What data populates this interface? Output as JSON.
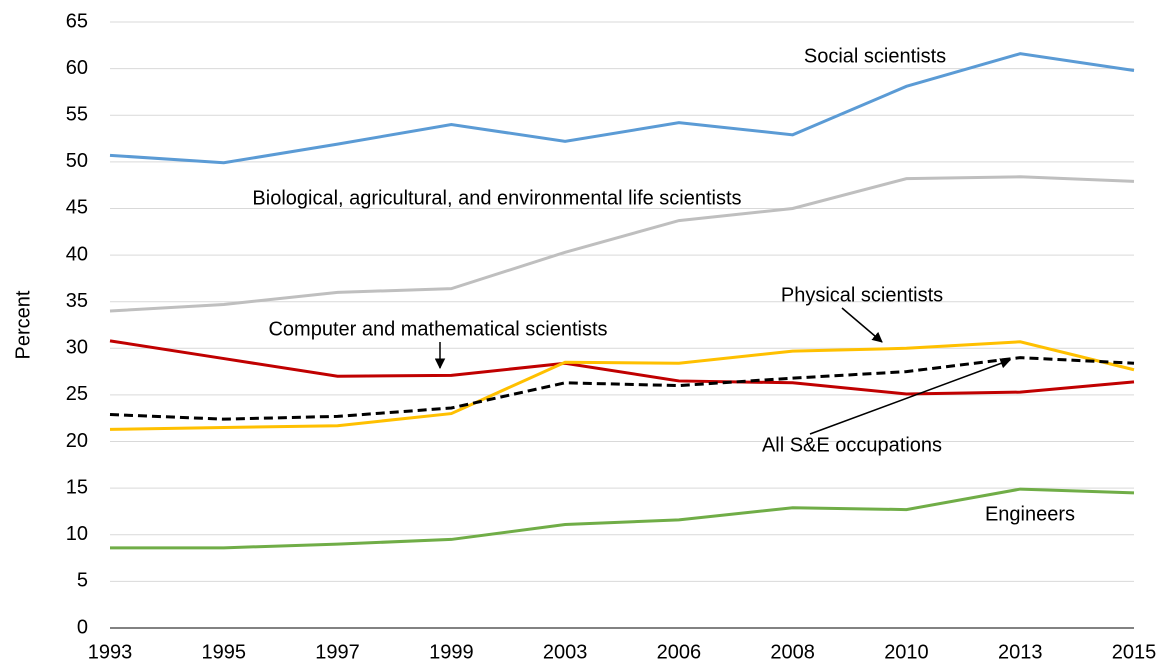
{
  "chart_data": {
    "type": "line",
    "y_label": "Percent",
    "categories": [
      "1993",
      "1995",
      "1997",
      "1999",
      "2003",
      "2006",
      "2008",
      "2010",
      "2013",
      "2015"
    ],
    "series": [
      {
        "name": "Social scientists",
        "color": "#5b9bd5",
        "values": [
          50.7,
          49.9,
          51.9,
          54.0,
          52.2,
          54.2,
          52.9,
          58.1,
          61.6,
          59.8
        ]
      },
      {
        "name": "Biological, agricultural, and environmental life scientists",
        "color": "#bfbfbf",
        "values": [
          34.0,
          34.7,
          36.0,
          36.4,
          40.3,
          43.7,
          45.0,
          48.2,
          48.4,
          47.9
        ]
      },
      {
        "name": "Computer and mathematical scientists",
        "color": "#c00000",
        "values": [
          30.8,
          28.9,
          27.0,
          27.1,
          28.4,
          26.5,
          26.3,
          25.1,
          25.3,
          26.4
        ]
      },
      {
        "name": "Physical scientists",
        "color": "#ffc000",
        "values": [
          21.3,
          21.5,
          21.7,
          23.0,
          28.5,
          28.4,
          29.7,
          30.0,
          30.7,
          27.7
        ]
      },
      {
        "name": "All S&E occupations",
        "color": "#000000",
        "dashed": true,
        "values": [
          22.9,
          22.4,
          22.7,
          23.6,
          26.3,
          26.0,
          26.8,
          27.5,
          29.0,
          28.4
        ]
      },
      {
        "name": "Engineers",
        "color": "#70ad47",
        "values": [
          8.6,
          8.6,
          9.0,
          9.5,
          11.1,
          11.6,
          12.9,
          12.7,
          14.9,
          14.5
        ]
      }
    ],
    "ylim": [
      0,
      65
    ],
    "yticks": [
      0,
      5,
      10,
      15,
      20,
      25,
      30,
      35,
      40,
      45,
      50,
      55,
      60,
      65
    ],
    "grid": true
  }
}
